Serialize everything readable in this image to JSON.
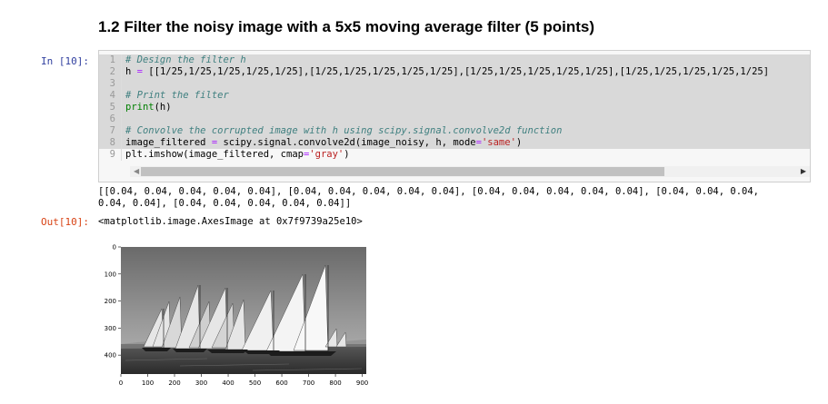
{
  "heading": "1.2 Filter the noisy image with a 5x5 moving average filter (5 points)",
  "cell_in_prompt": "In [10]:",
  "cell_out_prompt": "Out[10]:",
  "code": {
    "line_numbers": [
      "1",
      "2",
      "3",
      "4",
      "5",
      "6",
      "7",
      "8",
      "9"
    ],
    "l1_comment": "# Design the filter h",
    "l2_a": "h ",
    "l2_op": "=",
    "l2_b": " [[1/25,1/25,1/25,1/25,1/25],[1/25,1/25,1/25,1/25,1/25],[1/25,1/25,1/25,1/25,1/25],[1/25,1/25,1/25,1/25,1/25]",
    "l4_comment": "# Print the filter",
    "l5_fn": "print",
    "l5_rest": "(h)",
    "l7_comment": "# Convolve the corrupted image with h using scipy.signal.convolve2d function",
    "l8_a": "image_filtered ",
    "l8_op": "=",
    "l8_b": " scipy.signal.convolve2d(image_noisy, h, mode",
    "l8_op2": "=",
    "l8_str": "'same'",
    "l8_end": ")",
    "l9_a": "plt.imshow(image_filtered, cmap",
    "l9_op": "=",
    "l9_str": "'gray'",
    "l9_end": ")"
  },
  "stdout": "[[0.04, 0.04, 0.04, 0.04, 0.04], [0.04, 0.04, 0.04, 0.04, 0.04], [0.04, 0.04, 0.04, 0.04, 0.04], [0.04, 0.04, 0.04,\n0.04, 0.04], [0.04, 0.04, 0.04, 0.04, 0.04]]",
  "repr": "<matplotlib.image.AxesImage at 0x7f9739a25e10>",
  "plot": {
    "x_ticks": [
      "0",
      "100",
      "200",
      "300",
      "400",
      "500",
      "600",
      "700",
      "800",
      "900"
    ],
    "y_ticks": [
      "0",
      "100",
      "200",
      "300",
      "400"
    ]
  }
}
